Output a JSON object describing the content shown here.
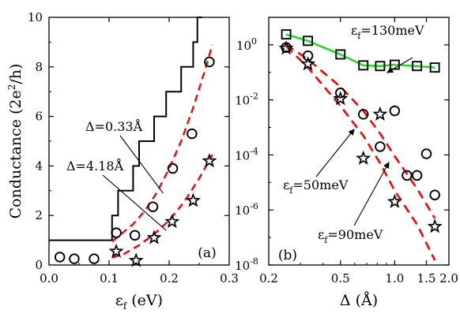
{
  "chart_data": [
    {
      "id": "a",
      "type": "line",
      "panel_label": "(a)",
      "xlabel": "ε_f (eV)",
      "ylabel": "Conductance (2e²/h)",
      "xlim": [
        0,
        0.3
      ],
      "ylim": [
        0,
        10
      ],
      "xticks": [
        0,
        0.1,
        0.2,
        0.3
      ],
      "xtick_labels": [
        "0.0",
        "0.1",
        "0.2",
        "0.3"
      ],
      "yticks": [
        0,
        2,
        4,
        6,
        8,
        10
      ],
      "ytick_labels": [
        "0",
        "2",
        "4",
        "6",
        "8",
        "10"
      ],
      "grid": false,
      "annotations": [
        {
          "text": "Δ=0.33Å",
          "points_to_series": "circles",
          "arrow_to": [
            0.19,
            2.9
          ]
        },
        {
          "text": "Δ=4.18Å",
          "points_to_series": "stars",
          "arrow_to": [
            0.195,
            1.4
          ]
        }
      ],
      "series": [
        {
          "style": "step",
          "color": "#000000",
          "x": [
            0.0,
            0.105,
            0.105,
            0.115,
            0.115,
            0.14,
            0.14,
            0.15,
            0.15,
            0.175,
            0.175,
            0.195,
            0.195,
            0.22,
            0.22,
            0.24,
            0.24,
            0.247,
            0.247,
            0.255,
            0.255
          ],
          "y": [
            1,
            1,
            2,
            2,
            3,
            3,
            4,
            4,
            5,
            5,
            6,
            6,
            7,
            7,
            8,
            8,
            9,
            9,
            10,
            10,
            10.5
          ]
        },
        {
          "style": "dashed",
          "color": "#ff0000",
          "x": [
            0.105,
            0.12,
            0.14,
            0.16,
            0.18,
            0.2,
            0.22,
            0.24,
            0.26,
            0.272
          ],
          "y": [
            0.95,
            1.25,
            1.65,
            2.2,
            2.95,
            3.9,
            5.0,
            6.35,
            7.9,
            8.9
          ]
        },
        {
          "style": "dashed",
          "color": "#ff0000",
          "x": [
            0.105,
            0.125,
            0.15,
            0.175,
            0.2,
            0.225,
            0.25,
            0.272
          ],
          "y": [
            0.3,
            0.45,
            0.8,
            1.25,
            1.8,
            2.55,
            3.5,
            4.45
          ]
        },
        {
          "style": "markers",
          "marker": "circle",
          "x": [
            0.018,
            0.042,
            0.075,
            0.112,
            0.143,
            0.173,
            0.206,
            0.238,
            0.267
          ],
          "y": [
            0.32,
            0.25,
            0.25,
            1.3,
            1.2,
            2.35,
            3.9,
            5.3,
            8.2
          ]
        },
        {
          "style": "markers",
          "marker": "star",
          "x": [
            0.112,
            0.145,
            0.175,
            0.205,
            0.24,
            0.267
          ],
          "y": [
            0.55,
            0.18,
            1.1,
            1.75,
            2.6,
            4.2
          ]
        }
      ]
    },
    {
      "id": "b",
      "type": "line",
      "panel_label": "(b)",
      "xlabel": "Δ (Å)",
      "x_scale": "log",
      "y_scale": "log",
      "xlim": [
        0.2,
        2.0
      ],
      "ylim": [
        1e-08,
        10
      ],
      "xticks": [
        0.2,
        0.5,
        1.0,
        1.5,
        2.0
      ],
      "xtick_labels": [
        "0.2",
        "0.5",
        "1.0",
        "1.5",
        "2.0"
      ],
      "yticks": [
        1e-08,
        1e-06,
        0.0001,
        0.01,
        1
      ],
      "ytick_labels": [
        {
          "base": "10",
          "exp": "-8"
        },
        {
          "base": "10",
          "exp": "-6"
        },
        {
          "base": "10",
          "exp": "-4"
        },
        {
          "base": "10",
          "exp": "-2"
        },
        {
          "base": "10",
          "exp": "0"
        }
      ],
      "grid": false,
      "annotations": [
        {
          "text": "ε_f=130meV"
        },
        {
          "text": "ε_f=50meV"
        },
        {
          "text": "ε_f=90meV"
        }
      ],
      "series": [
        {
          "style": "line+markers",
          "marker": "square",
          "color": "#22dd22",
          "x": [
            0.25,
            0.33,
            0.5,
            0.67,
            0.83,
            1.0,
            1.33,
            1.67
          ],
          "y": [
            2.4,
            1.4,
            0.45,
            0.18,
            0.17,
            0.19,
            0.17,
            0.15
          ]
        },
        {
          "style": "dashed",
          "color": "#ff0000",
          "x": [
            0.25,
            0.33,
            0.5,
            0.67,
            0.83,
            1.0,
            1.33,
            1.67
          ],
          "y": [
            0.9,
            0.15,
            0.006,
            0.0005,
            5e-05,
            5e-06,
            3e-07,
            1.5e-08
          ]
        },
        {
          "style": "dashed",
          "color": "#ff0000",
          "x": [
            0.25,
            0.33,
            0.5,
            0.67,
            0.83,
            1.0,
            1.33,
            1.67
          ],
          "y": [
            1.0,
            0.3,
            0.03,
            0.004,
            0.0006,
            9e-05,
            6e-06,
            5e-07
          ]
        },
        {
          "style": "markers",
          "marker": "circle",
          "x": [
            0.25,
            0.33,
            0.5,
            0.67,
            0.83,
            1.0,
            1.17,
            1.33,
            1.5,
            1.67
          ],
          "y": [
            0.8,
            0.4,
            0.018,
            0.003,
            0.0002,
            0.004,
            1.8e-05,
            1.8e-05,
            0.00011,
            3.5e-06
          ]
        },
        {
          "style": "markers",
          "marker": "star",
          "x": [
            0.25,
            0.33,
            0.5,
            0.67,
            0.83,
            1.0,
            1.67
          ],
          "y": [
            0.75,
            0.2,
            0.011,
            7.5e-05,
            0.003,
            2e-06,
            2.5e-07
          ]
        }
      ]
    }
  ]
}
